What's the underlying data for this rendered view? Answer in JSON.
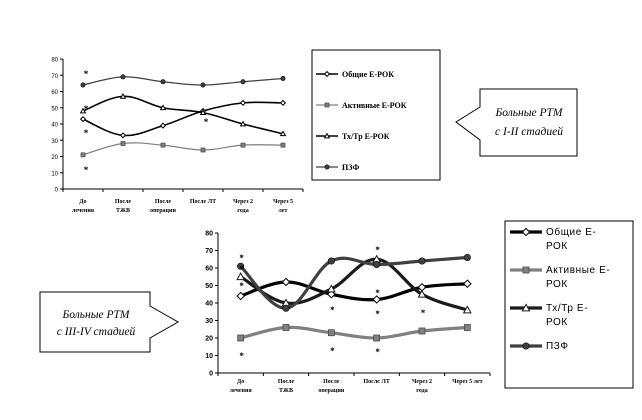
{
  "charts": [
    {
      "chart_data": {
        "type": "line",
        "categories": [
          "До лечения",
          "После ТЖВ",
          "После операции",
          "После ЛТ",
          "Через 2 года",
          "Через 5 лет"
        ],
        "series": [
          {
            "name": "Общие Е-РОК",
            "values": [
              43,
              33,
              39,
              48,
              53,
              53
            ]
          },
          {
            "name": "Активные Е-РОК",
            "values": [
              21,
              28,
              27,
              24,
              27,
              27
            ]
          },
          {
            "name": "Тх/Тр Е-РОК",
            "values": [
              48,
              57,
              50,
              47,
              40,
              34
            ]
          },
          {
            "name": "ПЗФ",
            "values": [
              64,
              69,
              66,
              64,
              66,
              68
            ]
          }
        ],
        "ylim": [
          0,
          80
        ],
        "yticks": [
          0,
          10,
          20,
          30,
          40,
          50,
          60,
          70,
          80
        ],
        "grid": false,
        "legend": "right",
        "annotations": [
          "*",
          "*",
          "*",
          "*",
          "*"
        ]
      }
    },
    {
      "chart_data": {
        "type": "line",
        "categories": [
          "До лечения",
          "После ТЖВ",
          "После операции",
          "После ЛТ",
          "Через 2 года",
          "Через 5 лет"
        ],
        "series": [
          {
            "name": "Общие Е-РОК",
            "values": [
              44,
              52,
              45,
              42,
              49,
              51
            ]
          },
          {
            "name": "Активные Е-РОК",
            "values": [
              20,
              26,
              23,
              20,
              24,
              26
            ]
          },
          {
            "name": "Тх/Тр Е-РОК",
            "values": [
              55,
              40,
              48,
              65,
              45,
              36
            ]
          },
          {
            "name": "ПЗФ",
            "values": [
              61,
              37,
              64,
              62,
              64,
              66
            ]
          }
        ],
        "ylim": [
          0,
          80
        ],
        "yticks": [
          0,
          10,
          20,
          30,
          40,
          50,
          60,
          70,
          80
        ],
        "grid": false,
        "legend": "right",
        "annotations": [
          "*",
          "*",
          "*",
          "*",
          "*",
          "*",
          "*",
          "*",
          "*",
          "*",
          "*"
        ]
      }
    }
  ],
  "callouts": {
    "top": [
      "Больные РТМ",
      "с I-II стадией"
    ],
    "bottom": [
      "Больные РТМ",
      "с III-IV стадией"
    ]
  },
  "colors": {
    "series1": [
      "#000000",
      "#808080",
      "#000000",
      "#404040"
    ],
    "series2": [
      "#000000",
      "#808080",
      "#1a1a1a",
      "#404040"
    ]
  }
}
